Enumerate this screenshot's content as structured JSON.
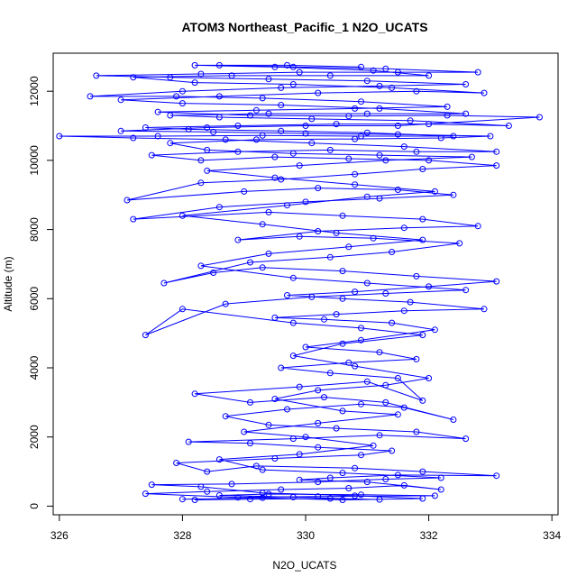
{
  "chart_data": {
    "type": "line",
    "title": "ATOM3 Northeast_Pacific_1 N2O_UCATS",
    "xlabel": "N2O_UCATS",
    "ylabel": "Altitude (m)",
    "xlim": [
      325.9,
      334.1
    ],
    "ylim": [
      -250,
      13100
    ],
    "xticks": [
      326,
      328,
      330,
      332,
      334
    ],
    "yticks": [
      0,
      2000,
      4000,
      6000,
      8000,
      10000,
      12000
    ],
    "grid": false,
    "legend": "none",
    "marker": "open-circle",
    "series": [
      {
        "color": "#0000ff",
        "points": [
          [
            328.2,
            180
          ],
          [
            329.1,
            200
          ],
          [
            330.4,
            220
          ],
          [
            331.2,
            190
          ],
          [
            329.8,
            260
          ],
          [
            328.6,
            310
          ],
          [
            329.4,
            350
          ],
          [
            330.9,
            330
          ],
          [
            332.1,
            300
          ],
          [
            330.2,
            280
          ],
          [
            328.9,
            250
          ],
          [
            327.4,
            360
          ],
          [
            328.4,
            420
          ],
          [
            329.6,
            480
          ],
          [
            330.7,
            520
          ],
          [
            331.6,
            600
          ],
          [
            332.2,
            480
          ],
          [
            331.0,
            700
          ],
          [
            329.9,
            760
          ],
          [
            330.4,
            820
          ],
          [
            331.5,
            900
          ],
          [
            333.1,
            880
          ],
          [
            331.9,
            1000
          ],
          [
            330.8,
            1100
          ],
          [
            329.2,
            1160
          ],
          [
            328.4,
            1000
          ],
          [
            327.9,
            1250
          ],
          [
            329.5,
            1380
          ],
          [
            330.9,
            1480
          ],
          [
            331.4,
            1600
          ],
          [
            330.2,
            1700
          ],
          [
            329.1,
            1820
          ],
          [
            328.1,
            1860
          ],
          [
            329.8,
            1950
          ],
          [
            331.2,
            2050
          ],
          [
            332.6,
            1950
          ],
          [
            331.8,
            2150
          ],
          [
            330.5,
            2250
          ],
          [
            329.4,
            2350
          ],
          [
            328.7,
            2600
          ],
          [
            329.7,
            2800
          ],
          [
            330.9,
            2950
          ],
          [
            331.6,
            2850
          ],
          [
            332.4,
            2500
          ],
          [
            331.3,
            3000
          ],
          [
            330.3,
            3150
          ],
          [
            329.1,
            3000
          ],
          [
            328.2,
            3250
          ],
          [
            329.9,
            3450
          ],
          [
            331.0,
            3600
          ],
          [
            331.9,
            3050
          ],
          [
            331.5,
            3700
          ],
          [
            330.4,
            3850
          ],
          [
            329.6,
            4000
          ],
          [
            330.7,
            4150
          ],
          [
            331.8,
            4250
          ],
          [
            331.2,
            4450
          ],
          [
            330.0,
            4600
          ],
          [
            330.9,
            4800
          ],
          [
            332.1,
            5100
          ],
          [
            331.4,
            5300
          ],
          [
            330.3,
            5400
          ],
          [
            329.5,
            5450
          ],
          [
            330.5,
            5550
          ],
          [
            331.6,
            5650
          ],
          [
            332.9,
            5700
          ],
          [
            331.7,
            5900
          ],
          [
            330.6,
            6000
          ],
          [
            329.7,
            6100
          ],
          [
            330.8,
            6200
          ],
          [
            332.0,
            6350
          ],
          [
            333.1,
            6500
          ],
          [
            331.8,
            6650
          ],
          [
            330.6,
            6800
          ],
          [
            329.3,
            6900
          ],
          [
            328.5,
            6750
          ],
          [
            327.7,
            6450
          ],
          [
            329.1,
            7050
          ],
          [
            330.4,
            7200
          ],
          [
            331.4,
            7350
          ],
          [
            332.5,
            7600
          ],
          [
            331.1,
            7750
          ],
          [
            329.9,
            7800
          ],
          [
            328.9,
            7700
          ],
          [
            330.2,
            7950
          ],
          [
            331.6,
            8050
          ],
          [
            332.8,
            8100
          ],
          [
            331.9,
            8300
          ],
          [
            330.6,
            8400
          ],
          [
            329.4,
            8500
          ],
          [
            327.2,
            8300
          ],
          [
            328.6,
            8650
          ],
          [
            330.0,
            8800
          ],
          [
            331.2,
            8900
          ],
          [
            332.4,
            9000
          ],
          [
            331.5,
            9150
          ],
          [
            330.2,
            9200
          ],
          [
            329.0,
            9100
          ],
          [
            327.1,
            8850
          ],
          [
            328.3,
            9350
          ],
          [
            329.6,
            9450
          ],
          [
            330.8,
            9600
          ],
          [
            331.9,
            9750
          ],
          [
            333.1,
            9850
          ],
          [
            332.0,
            10000
          ],
          [
            330.7,
            10050
          ],
          [
            329.5,
            10100
          ],
          [
            328.3,
            10000
          ],
          [
            327.5,
            10150
          ],
          [
            328.9,
            10250
          ],
          [
            330.4,
            10300
          ],
          [
            331.8,
            10250
          ],
          [
            333.1,
            10250
          ],
          [
            331.6,
            10400
          ],
          [
            330.1,
            10500
          ],
          [
            328.7,
            10600
          ],
          [
            327.2,
            10650
          ],
          [
            326.0,
            10700
          ],
          [
            327.6,
            10700
          ],
          [
            329.3,
            10720
          ],
          [
            330.9,
            10700
          ],
          [
            332.4,
            10700
          ],
          [
            331.0,
            10800
          ],
          [
            329.6,
            10850
          ],
          [
            328.1,
            10900
          ],
          [
            327.4,
            10950
          ],
          [
            328.9,
            11000
          ],
          [
            330.5,
            11050
          ],
          [
            332.0,
            11050
          ],
          [
            333.3,
            11000
          ],
          [
            331.7,
            11150
          ],
          [
            330.1,
            11200
          ],
          [
            328.6,
            11250
          ],
          [
            327.8,
            11300
          ],
          [
            329.4,
            11350
          ],
          [
            331.0,
            11350
          ],
          [
            332.6,
            11350
          ],
          [
            331.2,
            11500
          ],
          [
            329.6,
            11600
          ],
          [
            328.0,
            11650
          ],
          [
            327.0,
            11750
          ],
          [
            328.6,
            11850
          ],
          [
            330.2,
            11950
          ],
          [
            331.8,
            12000
          ],
          [
            332.9,
            11950
          ],
          [
            331.4,
            12100
          ],
          [
            329.8,
            12200
          ],
          [
            328.2,
            12250
          ],
          [
            327.2,
            12400
          ],
          [
            328.8,
            12450
          ],
          [
            330.4,
            12450
          ],
          [
            332.0,
            12450
          ],
          [
            331.1,
            12600
          ],
          [
            329.5,
            12700
          ],
          [
            328.2,
            12750
          ],
          [
            329.7,
            12750
          ],
          [
            330.9,
            12700
          ]
        ]
      },
      {
        "color": "#0000ff",
        "points": [
          [
            328.0,
            200
          ],
          [
            329.3,
            240
          ],
          [
            330.6,
            180
          ],
          [
            331.9,
            220
          ],
          [
            330.8,
            300
          ],
          [
            329.3,
            380
          ],
          [
            328.3,
            560
          ],
          [
            327.5,
            620
          ],
          [
            328.8,
            640
          ],
          [
            330.2,
            700
          ],
          [
            331.3,
            780
          ],
          [
            332.2,
            820
          ],
          [
            330.6,
            960
          ],
          [
            329.3,
            1050
          ],
          [
            328.6,
            1350
          ],
          [
            329.9,
            1500
          ],
          [
            331.1,
            1750
          ],
          [
            330.0,
            2000
          ],
          [
            329.0,
            2150
          ],
          [
            330.2,
            2400
          ],
          [
            331.5,
            2650
          ],
          [
            330.6,
            2750
          ],
          [
            329.5,
            3100
          ],
          [
            330.2,
            3350
          ],
          [
            331.3,
            3500
          ],
          [
            332.0,
            3700
          ],
          [
            330.8,
            4050
          ],
          [
            329.8,
            4350
          ],
          [
            330.6,
            4700
          ],
          [
            331.9,
            4950
          ],
          [
            330.9,
            5150
          ],
          [
            329.8,
            5300
          ],
          [
            328.0,
            5700
          ],
          [
            327.4,
            4950
          ],
          [
            328.7,
            5850
          ],
          [
            330.1,
            6050
          ],
          [
            331.3,
            6150
          ],
          [
            332.6,
            6250
          ],
          [
            331.0,
            6450
          ],
          [
            329.8,
            6600
          ],
          [
            328.3,
            6950
          ],
          [
            329.4,
            7300
          ],
          [
            330.7,
            7500
          ],
          [
            331.9,
            7700
          ],
          [
            330.5,
            7900
          ],
          [
            329.3,
            8150
          ],
          [
            328.0,
            8400
          ],
          [
            329.7,
            8700
          ],
          [
            331.0,
            8950
          ],
          [
            332.1,
            9100
          ],
          [
            330.8,
            9300
          ],
          [
            329.5,
            9500
          ],
          [
            328.4,
            9700
          ],
          [
            329.9,
            9850
          ],
          [
            331.3,
            10000
          ],
          [
            332.7,
            10100
          ],
          [
            331.2,
            10150
          ],
          [
            329.8,
            10200
          ],
          [
            328.4,
            10300
          ],
          [
            327.8,
            10500
          ],
          [
            329.2,
            10600
          ],
          [
            330.8,
            10620
          ],
          [
            332.2,
            10650
          ],
          [
            333.0,
            10700
          ],
          [
            331.5,
            10750
          ],
          [
            330.0,
            10780
          ],
          [
            328.5,
            10820
          ],
          [
            327.0,
            10850
          ],
          [
            328.4,
            10950
          ],
          [
            330.0,
            11000
          ],
          [
            331.5,
            11000
          ],
          [
            333.8,
            11250
          ],
          [
            332.3,
            11300
          ],
          [
            330.7,
            11280
          ],
          [
            329.1,
            11300
          ],
          [
            327.6,
            11400
          ],
          [
            329.2,
            11450
          ],
          [
            330.8,
            11500
          ],
          [
            332.3,
            11550
          ],
          [
            330.9,
            11700
          ],
          [
            329.3,
            11800
          ],
          [
            327.9,
            11850
          ],
          [
            326.5,
            11850
          ],
          [
            328.0,
            12000
          ],
          [
            329.6,
            12100
          ],
          [
            331.2,
            12150
          ],
          [
            332.6,
            12200
          ],
          [
            331.0,
            12300
          ],
          [
            329.4,
            12350
          ],
          [
            327.8,
            12400
          ],
          [
            326.6,
            12450
          ],
          [
            328.3,
            12500
          ],
          [
            329.9,
            12550
          ],
          [
            331.5,
            12550
          ],
          [
            332.8,
            12550
          ],
          [
            331.3,
            12650
          ],
          [
            329.8,
            12700
          ],
          [
            328.6,
            12750
          ]
        ]
      }
    ]
  }
}
